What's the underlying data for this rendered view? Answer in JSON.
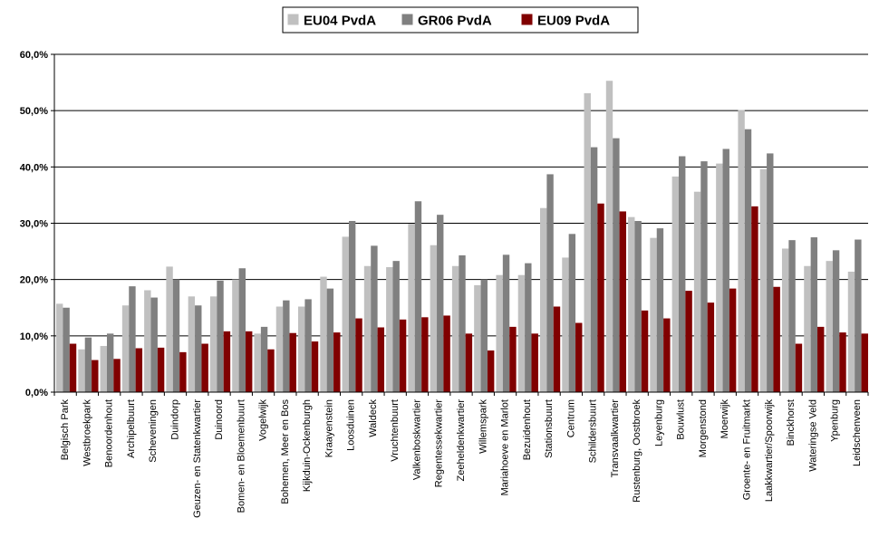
{
  "chart_data": {
    "type": "bar",
    "ylim": [
      0,
      60
    ],
    "y_ticks": [
      "0,0%",
      "10,0%",
      "20,0%",
      "30,0%",
      "40,0%",
      "50,0%",
      "60,0%"
    ],
    "grid": true,
    "legend_position": "top-center",
    "categories": [
      "Belgisch Park",
      "Westbroekpark",
      "Benoordenhout",
      "Archipelbuurt",
      "Scheveningen",
      "Duindorp",
      "Geuzen- en Statenkwartier",
      "Duinoord",
      "Bomen- en Bloemenbuurt",
      "Vogelwijk",
      "Bohemen, Meer en Bos",
      "Kijkduin-Ockenburgh",
      "Kraayenstein",
      "Loosduinen",
      "Waldeck",
      "Vruchtenbuurt",
      "Valkenboskwartier",
      "Regentessekwartier",
      "Zeeheldenkwartier",
      "Willemspark",
      "Mariahoeve en Marlot",
      "Bezuidenhout",
      "Stationsbuurt",
      "Centrum",
      "Schildersbuurt",
      "Transvaalkwartier",
      "Rustenburg, Oostbroek",
      "Leyenburg",
      "Bouwlust",
      "Morgenstond",
      "Moerwijk",
      "Groente- en Fruitmarkt",
      "Laakkwartier/Spoorwijk",
      "Binckhorst",
      "Wateringse Veld",
      "Ypenburg",
      "Leidschenveen"
    ],
    "series": [
      {
        "name": "EU04 PvdA",
        "color": "#c0c0c0",
        "values": [
          15.7,
          7.6,
          8.2,
          15.4,
          18.1,
          22.3,
          17.0,
          17.0,
          20.0,
          10.4,
          15.2,
          15.2,
          20.5,
          27.6,
          22.4,
          22.2,
          29.9,
          26.1,
          22.4,
          19.0,
          20.8,
          20.8,
          32.7,
          23.9,
          53.1,
          55.3,
          31.1,
          27.4,
          38.3,
          35.6,
          40.6,
          50.1,
          39.6,
          25.5,
          22.4,
          23.3,
          21.4
        ]
      },
      {
        "name": "GR06 PvdA",
        "color": "#808080",
        "values": [
          15.0,
          9.7,
          10.4,
          18.8,
          16.8,
          20.0,
          15.4,
          19.8,
          22.0,
          11.6,
          16.3,
          16.5,
          18.4,
          30.4,
          26.0,
          23.3,
          33.9,
          31.5,
          24.3,
          20.0,
          24.4,
          22.9,
          38.7,
          28.1,
          43.5,
          45.1,
          30.4,
          29.1,
          41.9,
          41.0,
          43.2,
          46.7,
          42.4,
          27.0,
          27.5,
          25.2,
          27.1
        ]
      },
      {
        "name": "EU09 PvdA",
        "color": "#800000",
        "values": [
          8.6,
          5.7,
          5.9,
          7.8,
          7.9,
          7.1,
          8.6,
          10.8,
          10.8,
          7.6,
          10.5,
          9.0,
          10.6,
          13.1,
          11.5,
          12.9,
          13.3,
          13.6,
          10.4,
          7.4,
          11.6,
          10.4,
          15.2,
          12.3,
          33.5,
          32.1,
          14.5,
          13.1,
          18.0,
          15.9,
          18.4,
          33.0,
          18.7,
          8.6,
          11.6,
          10.6,
          10.4
        ]
      }
    ]
  }
}
